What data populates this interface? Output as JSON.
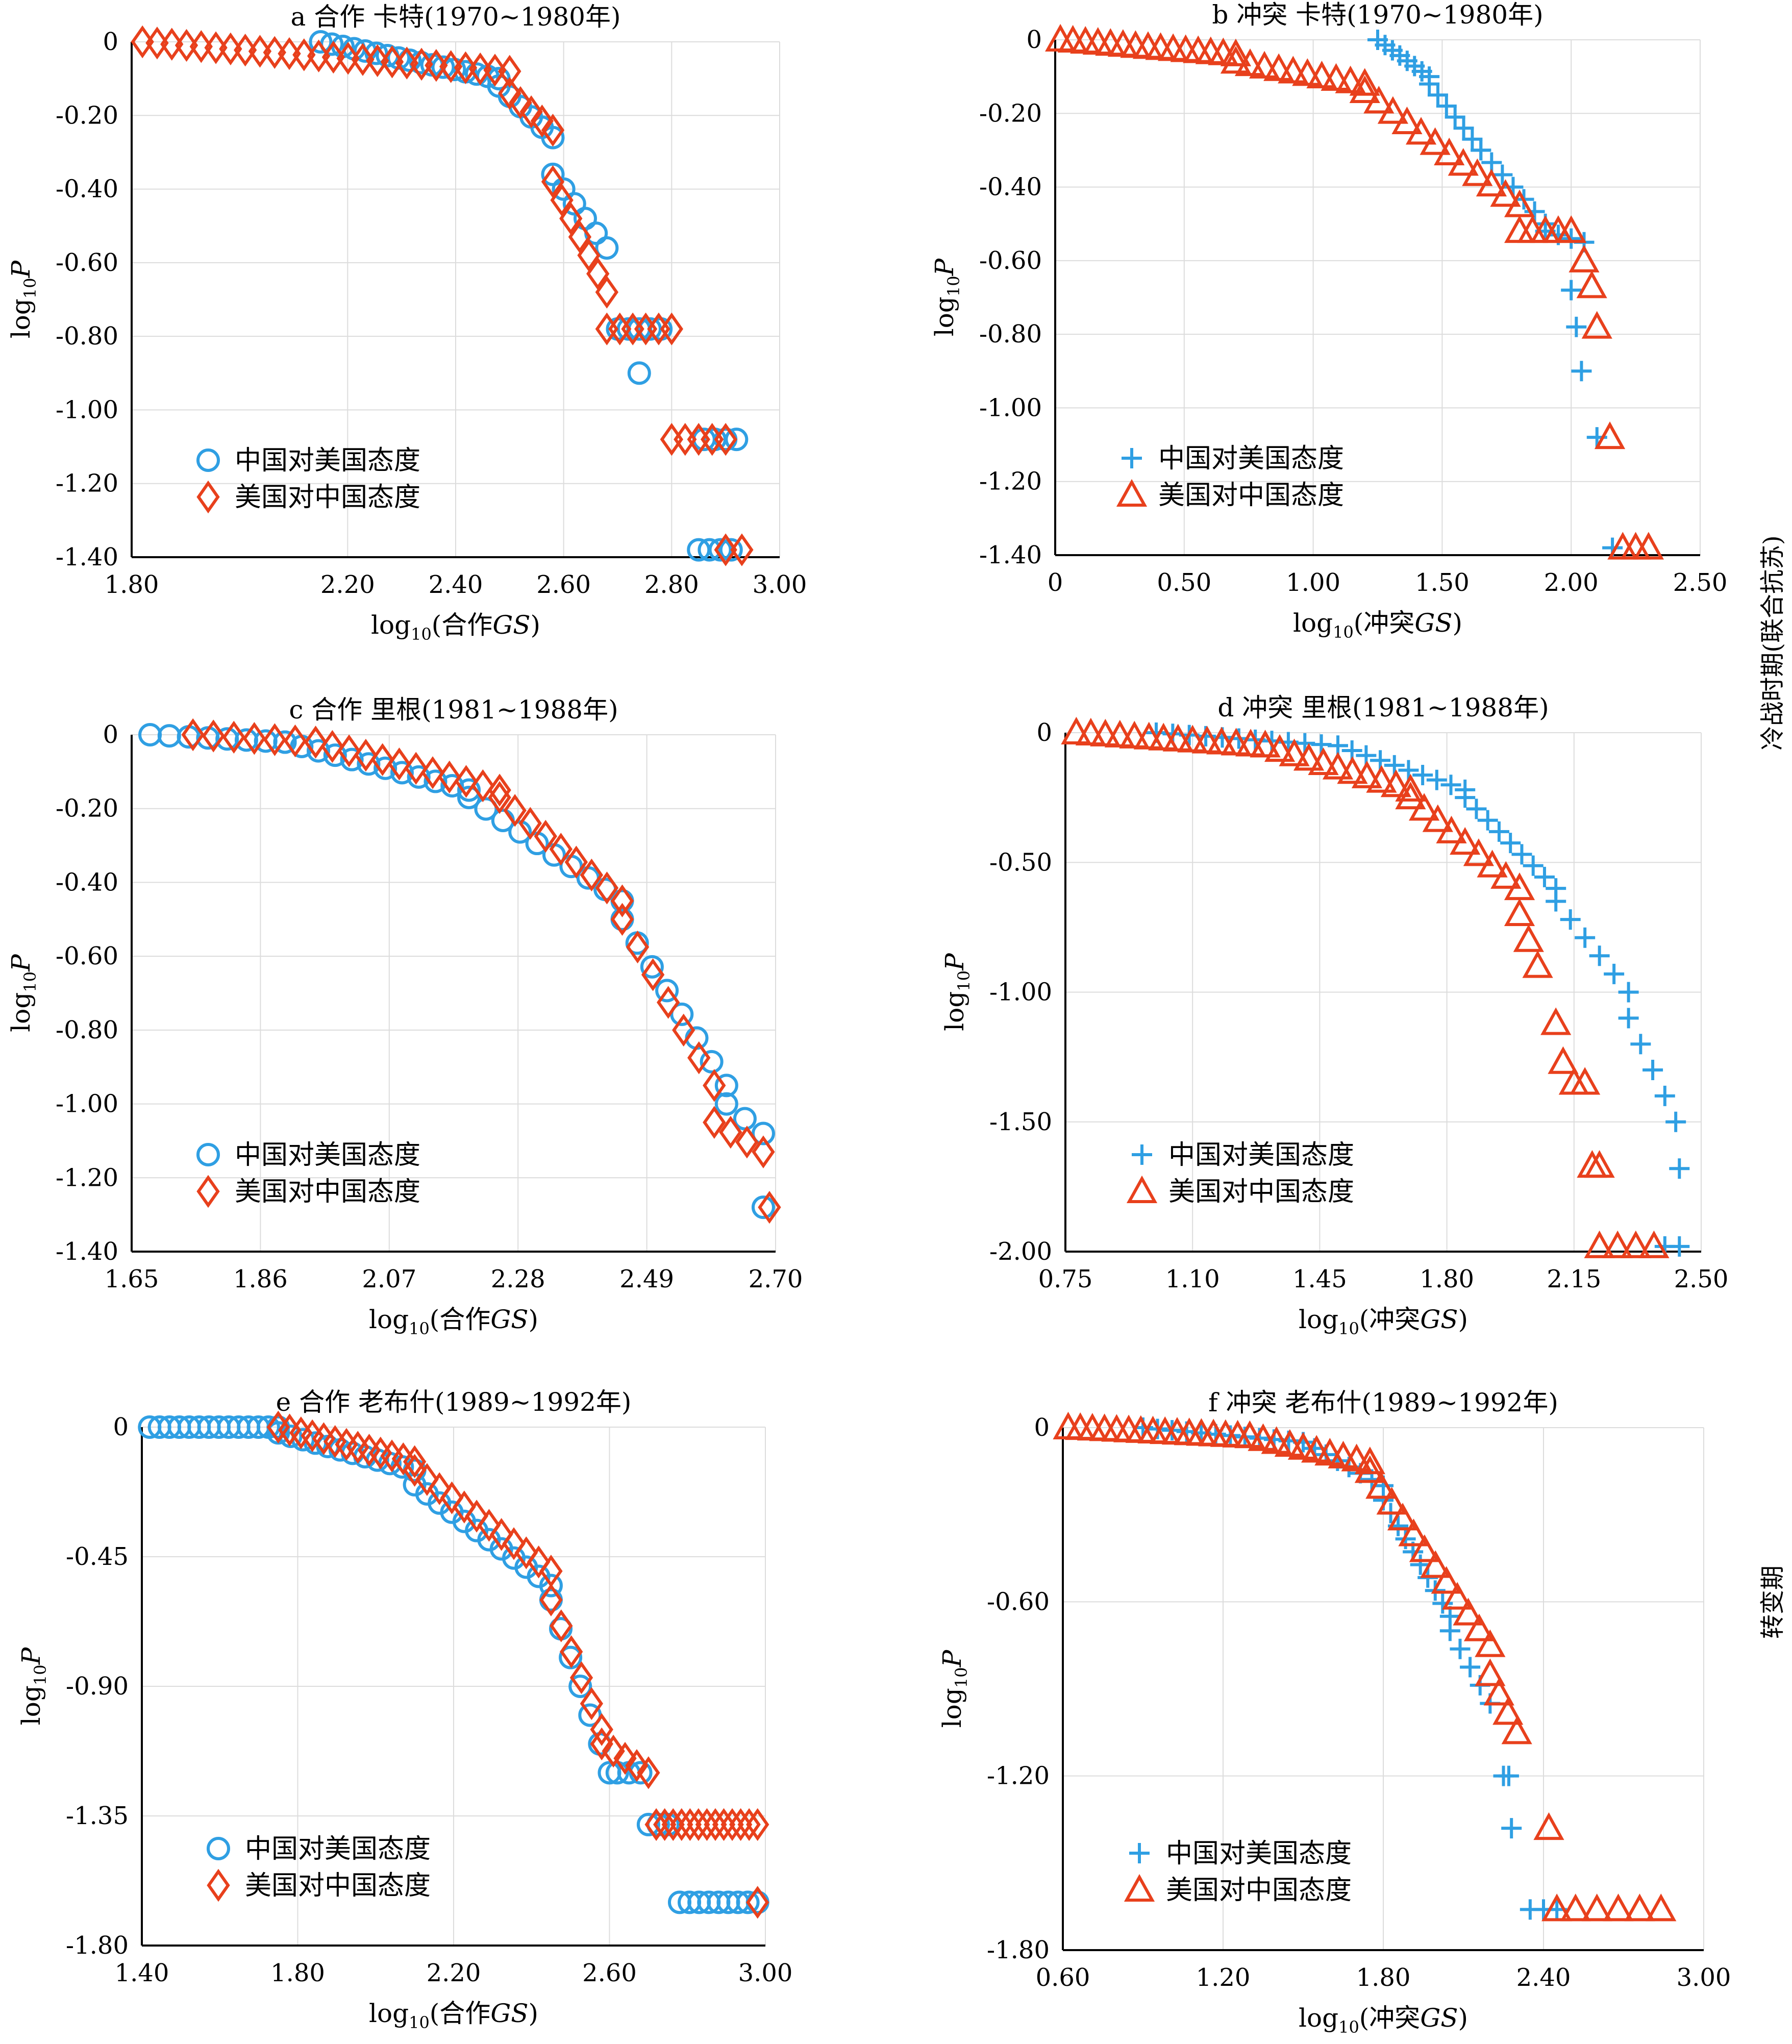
{
  "colors": {
    "china": "#2f9fe3",
    "us": "#e8401c",
    "grid": "#dcdcdc",
    "frame": "#000000"
  },
  "side_labels": [
    "冷战时期(联合抗苏)",
    "转变期"
  ],
  "chart_data": [
    {
      "id": "a",
      "type": "scatter",
      "title": "a 合作 卡特(1970~1980年)",
      "xlabel_main": "log",
      "xlabel_sub": "10",
      "xlabel_tail": "(合作",
      "xlabel_ital": "GS",
      "xlabel_end": ")",
      "ylabel_main": "log",
      "ylabel_sub": "10",
      "ylabel_ital": "P",
      "xlim": [
        1.8,
        3.0
      ],
      "ylim": [
        -1.4,
        0
      ],
      "xticks": [
        1.8,
        2.2,
        2.4,
        2.6,
        2.8,
        3.0
      ],
      "xticklabels": [
        "1.80",
        "2.20",
        "2.40",
        "2.60",
        "2.80",
        "3.00"
      ],
      "yticks": [
        0,
        -0.2,
        -0.4,
        -0.6,
        -0.8,
        -1.0,
        -1.2,
        -1.4
      ],
      "yticklabels": [
        "0",
        "-0.20",
        "-0.40",
        "-0.60",
        "-0.80",
        "-1.00",
        "-1.20",
        "-1.40"
      ],
      "legend_position": "bottom-left",
      "series": [
        {
          "name": "中国对美国态度",
          "marker": "circle",
          "color": "#2f9fe3",
          "segments": [
            [
              2.15,
              2.48,
              0,
              -0.1,
              17
            ],
            [
              2.48,
              2.58,
              -0.12,
              -0.26,
              6
            ],
            [
              2.58,
              2.68,
              -0.36,
              -0.56,
              6
            ],
            [
              2.7,
              2.78,
              -0.78,
              -0.78,
              5
            ],
            [
              2.86,
              2.92,
              -1.08,
              -1.08,
              4
            ],
            [
              2.85,
              2.91,
              -1.38,
              -1.38,
              4
            ]
          ],
          "points": [
            [
              2.74,
              -0.9
            ]
          ]
        },
        {
          "name": "美国对中国态度",
          "marker": "diamond",
          "color": "#e8401c",
          "segments": [
            [
              1.82,
              2.5,
              0,
              -0.08,
              26
            ],
            [
              2.5,
              2.58,
              -0.14,
              -0.24,
              5
            ],
            [
              2.58,
              2.68,
              -0.38,
              -0.68,
              7
            ],
            [
              2.68,
              2.8,
              -0.78,
              -0.78,
              6
            ],
            [
              2.8,
              2.9,
              -1.08,
              -1.08,
              5
            ],
            [
              2.9,
              2.93,
              -1.38,
              -1.38,
              2
            ]
          ],
          "points": []
        }
      ]
    },
    {
      "id": "b",
      "type": "scatter",
      "title": "b 冲突 卡特(1970~1980年)",
      "xlabel_main": "log",
      "xlabel_sub": "10",
      "xlabel_tail": "(冲突",
      "xlabel_ital": "GS",
      "xlabel_end": ")",
      "ylabel_main": "log",
      "ylabel_sub": "10",
      "ylabel_ital": "P",
      "xlim": [
        0,
        2.5
      ],
      "ylim": [
        -1.4,
        0
      ],
      "xticks": [
        0,
        0.5,
        1.0,
        1.5,
        2.0,
        2.5
      ],
      "xticklabels": [
        "0",
        "0.50",
        "1.00",
        "1.50",
        "2.00",
        "2.50"
      ],
      "yticks": [
        0,
        -0.2,
        -0.4,
        -0.6,
        -0.8,
        -1.0,
        -1.2,
        -1.4
      ],
      "yticklabels": [
        "0",
        "-0.20",
        "-0.40",
        "-0.60",
        "-0.80",
        "-1.00",
        "-1.20",
        "-1.40"
      ],
      "legend_position": "bottom-left",
      "series": [
        {
          "name": "中国对美国态度",
          "marker": "plus",
          "color": "#2f9fe3",
          "segments": [
            [
              1.25,
              1.45,
              0,
              -0.1,
              8
            ],
            [
              1.45,
              1.65,
              -0.12,
              -0.3,
              7
            ],
            [
              1.65,
              1.9,
              -0.3,
              -0.5,
              7
            ],
            [
              1.9,
              2.05,
              -0.52,
              -0.55,
              4
            ]
          ],
          "points": [
            [
              2.0,
              -0.68
            ],
            [
              2.02,
              -0.78
            ],
            [
              2.04,
              -0.9
            ],
            [
              2.1,
              -1.08
            ],
            [
              2.16,
              -1.38
            ]
          ]
        },
        {
          "name": "美国对中国态度",
          "marker": "triangle",
          "color": "#e8401c",
          "segments": [
            [
              0.02,
              0.7,
              0,
              -0.04,
              15
            ],
            [
              0.7,
              1.2,
              -0.06,
              -0.12,
              10
            ],
            [
              1.2,
              1.8,
              -0.14,
              -0.45,
              12
            ],
            [
              1.8,
              2.0,
              -0.52,
              -0.52,
              5
            ]
          ],
          "points": [
            [
              2.05,
              -0.6
            ],
            [
              2.08,
              -0.67
            ],
            [
              2.1,
              -0.78
            ],
            [
              2.15,
              -1.08
            ],
            [
              2.2,
              -1.38
            ],
            [
              2.25,
              -1.38
            ],
            [
              2.3,
              -1.38
            ]
          ]
        }
      ]
    },
    {
      "id": "c",
      "type": "scatter",
      "title": "c 合作 里根(1981~1988年)",
      "xlabel_main": "log",
      "xlabel_sub": "10",
      "xlabel_tail": "(合作",
      "xlabel_ital": "GS",
      "xlabel_end": ")",
      "ylabel_main": "log",
      "ylabel_sub": "10",
      "ylabel_ital": "P",
      "xlim": [
        1.65,
        2.7
      ],
      "ylim": [
        -1.4,
        0
      ],
      "xticks": [
        1.65,
        1.86,
        2.07,
        2.28,
        2.49,
        2.7
      ],
      "xticklabels": [
        "1.65",
        "1.86",
        "2.07",
        "2.28",
        "2.49",
        "2.70"
      ],
      "yticks": [
        0,
        -0.2,
        -0.4,
        -0.6,
        -0.8,
        -1.0,
        -1.2,
        -1.4
      ],
      "yticklabels": [
        "0",
        "-0.20",
        "-0.40",
        "-0.60",
        "-0.80",
        "-1.00",
        "-1.20",
        "-1.40"
      ],
      "legend_position": "bottom-left",
      "series": [
        {
          "name": "中国对美国态度",
          "marker": "circle",
          "color": "#2f9fe3",
          "segments": [
            [
              1.68,
              1.9,
              0,
              -0.02,
              8
            ],
            [
              1.9,
              2.2,
              -0.02,
              -0.15,
              12
            ],
            [
              2.2,
              2.45,
              -0.17,
              -0.45,
              10
            ],
            [
              2.45,
              2.62,
              -0.5,
              -0.95,
              8
            ],
            [
              2.62,
              2.68,
              -1.0,
              -1.08,
              3
            ]
          ],
          "points": [
            [
              2.68,
              -1.28
            ]
          ]
        },
        {
          "name": "美国对中国态度",
          "marker": "diamond",
          "color": "#e8401c",
          "segments": [
            [
              1.75,
              1.95,
              0,
              -0.02,
              7
            ],
            [
              1.95,
              2.25,
              -0.02,
              -0.15,
              12
            ],
            [
              2.25,
              2.45,
              -0.17,
              -0.45,
              9
            ],
            [
              2.45,
              2.6,
              -0.5,
              -0.95,
              7
            ],
            [
              2.6,
              2.68,
              -1.05,
              -1.13,
              4
            ]
          ],
          "points": [
            [
              2.69,
              -1.28
            ]
          ]
        }
      ]
    },
    {
      "id": "d",
      "type": "scatter",
      "title": "d 冲突 里根(1981~1988年)",
      "xlabel_main": "log",
      "xlabel_sub": "10",
      "xlabel_tail": "(冲突",
      "xlabel_ital": "GS",
      "xlabel_end": ")",
      "ylabel_main": "log",
      "ylabel_sub": "10",
      "ylabel_ital": "P",
      "xlim": [
        0.75,
        2.5
      ],
      "ylim": [
        -2.0,
        0
      ],
      "xticks": [
        0.75,
        1.1,
        1.45,
        1.8,
        2.15,
        2.5
      ],
      "xticklabels": [
        "0.75",
        "1.10",
        "1.45",
        "1.80",
        "2.15",
        "2.50"
      ],
      "yticks": [
        0,
        -0.5,
        -1.0,
        -1.5,
        -2.0
      ],
      "yticklabels": [
        "0",
        "-0.50",
        "-1.00",
        "-1.50",
        "-2.00"
      ],
      "legend_position": "bottom-left",
      "series": [
        {
          "name": "中国对美国态度",
          "marker": "plus",
          "color": "#2f9fe3",
          "segments": [
            [
              1.0,
              1.5,
              0,
              -0.05,
              12
            ],
            [
              1.5,
              1.85,
              -0.05,
              -0.22,
              10
            ],
            [
              1.85,
              2.1,
              -0.25,
              -0.6,
              9
            ],
            [
              2.1,
              2.3,
              -0.65,
              -1.0,
              6
            ],
            [
              2.3,
              2.4,
              -1.1,
              -1.4,
              4
            ]
          ],
          "points": [
            [
              2.43,
              -1.5
            ],
            [
              2.44,
              -1.68
            ],
            [
              2.4,
              -1.98
            ],
            [
              2.44,
              -1.98
            ]
          ]
        },
        {
          "name": "美国对中国态度",
          "marker": "triangle",
          "color": "#e8401c",
          "segments": [
            [
              0.78,
              1.3,
              0,
              -0.05,
              14
            ],
            [
              1.3,
              1.7,
              -0.05,
              -0.22,
              11
            ],
            [
              1.7,
              2.0,
              -0.25,
              -0.6,
              9
            ],
            [
              2.0,
              2.05,
              -0.7,
              -0.9,
              3
            ]
          ],
          "points": [
            [
              2.1,
              -1.12
            ],
            [
              2.12,
              -1.27
            ],
            [
              2.15,
              -1.35
            ],
            [
              2.18,
              -1.35
            ],
            [
              2.2,
              -1.67
            ],
            [
              2.22,
              -1.67
            ],
            [
              2.22,
              -1.98
            ],
            [
              2.27,
              -1.98
            ],
            [
              2.32,
              -1.98
            ],
            [
              2.37,
              -1.98
            ]
          ]
        }
      ]
    },
    {
      "id": "e",
      "type": "scatter",
      "title": "e 合作 老布什(1989~1992年)",
      "xlabel_main": "log",
      "xlabel_sub": "10",
      "xlabel_tail": "(合作",
      "xlabel_ital": "GS",
      "xlabel_end": ")",
      "ylabel_main": "log",
      "ylabel_sub": "10",
      "ylabel_ital": "P",
      "xlim": [
        1.4,
        3.0
      ],
      "ylim": [
        -1.8,
        0
      ],
      "xticks": [
        1.4,
        1.8,
        2.2,
        2.6,
        3.0
      ],
      "xticklabels": [
        "1.40",
        "1.80",
        "2.20",
        "2.60",
        "3.00"
      ],
      "yticks": [
        0,
        -0.45,
        -0.9,
        -1.35,
        -1.8
      ],
      "yticklabels": [
        "0",
        "-0.45",
        "-0.90",
        "-1.35",
        "-1.80"
      ],
      "legend_position": "bottom-left",
      "series": [
        {
          "name": "中国对美国态度",
          "marker": "circle",
          "color": "#2f9fe3",
          "segments": [
            [
              1.42,
              1.75,
              0,
              0,
              14
            ],
            [
              1.75,
              2.1,
              -0.02,
              -0.15,
              12
            ],
            [
              2.1,
              2.45,
              -0.2,
              -0.55,
              12
            ],
            [
              2.45,
              2.6,
              -0.6,
              -1.2,
              7
            ],
            [
              2.62,
              2.68,
              -1.2,
              -1.2,
              3
            ],
            [
              2.7,
              2.75,
              -1.38,
              -1.38,
              3
            ],
            [
              2.78,
              2.98,
              -1.65,
              -1.65,
              9
            ]
          ],
          "points": []
        },
        {
          "name": "美国对中国态度",
          "marker": "diamond",
          "color": "#e8401c",
          "segments": [
            [
              1.75,
              2.1,
              0,
              -0.12,
              13
            ],
            [
              2.1,
              2.45,
              -0.15,
              -0.5,
              12
            ],
            [
              2.45,
              2.58,
              -0.6,
              -1.05,
              6
            ],
            [
              2.58,
              2.7,
              -1.1,
              -1.2,
              5
            ],
            [
              2.72,
              2.98,
              -1.38,
              -1.38,
              13
            ]
          ],
          "points": [
            [
              2.98,
              -1.65
            ]
          ]
        }
      ]
    },
    {
      "id": "f",
      "type": "scatter",
      "title": "f 冲突 老布什(1989~1992年)",
      "xlabel_main": "log",
      "xlabel_sub": "10",
      "xlabel_tail": "(冲突",
      "xlabel_ital": "GS",
      "xlabel_end": ")",
      "ylabel_main": "log",
      "ylabel_sub": "10",
      "ylabel_ital": "P",
      "xlim": [
        0.6,
        3.0
      ],
      "ylim": [
        -1.8,
        0
      ],
      "xticks": [
        0.6,
        1.2,
        1.8,
        2.4,
        3.0
      ],
      "xticklabels": [
        "0.60",
        "1.20",
        "1.80",
        "2.40",
        "3.00"
      ],
      "yticks": [
        0,
        -0.6,
        -1.2,
        -1.8
      ],
      "yticklabels": [
        "0",
        "-0.60",
        "-1.20",
        "-1.80"
      ],
      "legend_position": "bottom-left",
      "series": [
        {
          "name": "中国对美国态度",
          "marker": "plus",
          "color": "#2f9fe3",
          "segments": [
            [
              0.9,
              1.5,
              0,
              -0.05,
              12
            ],
            [
              1.5,
              1.8,
              -0.05,
              -0.2,
              8
            ],
            [
              1.8,
              2.05,
              -0.25,
              -0.65,
              10
            ],
            [
              2.05,
              2.2,
              -0.7,
              -0.95,
              5
            ]
          ],
          "points": [
            [
              2.25,
              -1.2
            ],
            [
              2.27,
              -1.2
            ],
            [
              2.28,
              -1.38
            ],
            [
              2.35,
              -1.66
            ],
            [
              2.4,
              -1.66
            ],
            [
              2.45,
              -1.66
            ]
          ]
        },
        {
          "name": "美国对中国态度",
          "marker": "triangle",
          "color": "#e8401c",
          "segments": [
            [
              0.62,
              1.3,
              0,
              -0.03,
              16
            ],
            [
              1.3,
              1.75,
              -0.03,
              -0.12,
              10
            ],
            [
              1.75,
              2.2,
              -0.15,
              -0.75,
              12
            ],
            [
              2.2,
              2.3,
              -0.85,
              -1.05,
              4
            ]
          ],
          "points": [
            [
              2.42,
              -1.38
            ],
            [
              2.45,
              -1.66
            ],
            [
              2.52,
              -1.66
            ],
            [
              2.6,
              -1.66
            ],
            [
              2.68,
              -1.66
            ],
            [
              2.76,
              -1.66
            ],
            [
              2.84,
              -1.66
            ]
          ]
        }
      ]
    }
  ]
}
